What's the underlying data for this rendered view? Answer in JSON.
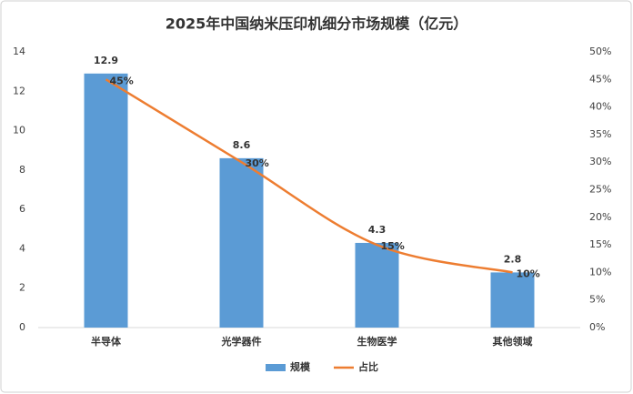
{
  "chart_data": {
    "type": "bar",
    "title": "2025年中国纳米压印机细分市场规模（亿元）",
    "categories": [
      "半导体",
      "光学器件",
      "生物医学",
      "其他领域"
    ],
    "series": [
      {
        "name": "规模",
        "type": "bar",
        "color": "#5b9bd5",
        "values": [
          12.9,
          8.6,
          4.3,
          2.8
        ]
      },
      {
        "name": "占比",
        "type": "line",
        "axis": "y2",
        "color": "#ed7d31",
        "values": [
          45,
          30,
          15,
          10
        ],
        "value_labels": [
          "45%",
          "30%",
          "15%",
          "10%"
        ]
      }
    ],
    "ylim": [
      0,
      14
    ],
    "yticks": [
      0,
      2,
      4,
      6,
      8,
      10,
      12,
      14
    ],
    "y2lim": [
      0,
      50
    ],
    "y2ticks": [
      {
        "value": 0,
        "label": "0%"
      },
      {
        "value": 5,
        "label": "5%"
      },
      {
        "value": 10,
        "label": "10%"
      },
      {
        "value": 15,
        "label": "15%"
      },
      {
        "value": 20,
        "label": "20%"
      },
      {
        "value": 25,
        "label": "25%"
      },
      {
        "value": 30,
        "label": "30%"
      },
      {
        "value": 35,
        "label": "35%"
      },
      {
        "value": 40,
        "label": "40%"
      },
      {
        "value": 45,
        "label": "45%"
      },
      {
        "value": 50,
        "label": "50%"
      }
    ],
    "grid": false,
    "legend": "bottom"
  }
}
